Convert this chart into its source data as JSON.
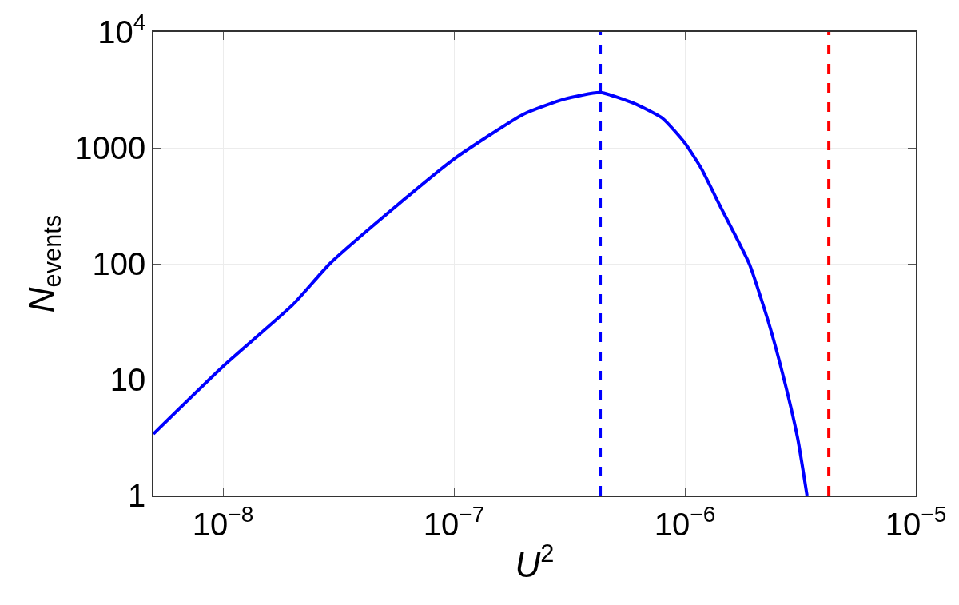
{
  "chart_data": {
    "type": "line",
    "xlabel": "U$^{2}$",
    "ylabel": "N$_{events}$",
    "log": "xy",
    "grid": true,
    "marker": "none",
    "line_style": "solid",
    "xlim": [
      5e-09,
      1e-05
    ],
    "ylim": [
      1,
      10000
    ],
    "xticks": [
      {
        "value": 1e-08,
        "label": "10$^{−8}$"
      },
      {
        "value": 1e-07,
        "label": "10$^{−7}$"
      },
      {
        "value": 1e-06,
        "label": "10$^{−6}$"
      },
      {
        "value": 1e-05,
        "label": "10$^{−5}$"
      }
    ],
    "yticks": [
      1,
      10,
      100,
      1000,
      {
        "value": 10000,
        "label": "10$^{4}$"
      }
    ],
    "x": [
      5e-09,
      1e-08,
      2e-08,
      2.9e-08,
      5e-08,
      1e-07,
      2e-07,
      3e-07,
      4.3e-07,
      6e-07,
      8e-07,
      1e-06,
      1.18e-06,
      1.42e-06,
      1.9e-06,
      2.3e-06,
      2.69e-06,
      3.08e-06,
      3.38e-06
    ],
    "series": [
      {
        "color": "#0000ff",
        "values": [
          3.4,
          13,
          44,
          100,
          258,
          800,
          1950,
          2630,
          3000,
          2430,
          1800,
          1100,
          660,
          316,
          100,
          31.5,
          10,
          3.1,
          1
        ]
      }
    ],
    "ref_lines": [
      {
        "axis": "x",
        "value": 4.3e-07,
        "color": "#0000ff",
        "line_style": "dashed"
      },
      {
        "axis": "x",
        "value": 4.2e-06,
        "color": "#ff0000",
        "line_style": "dashed"
      }
    ]
  }
}
